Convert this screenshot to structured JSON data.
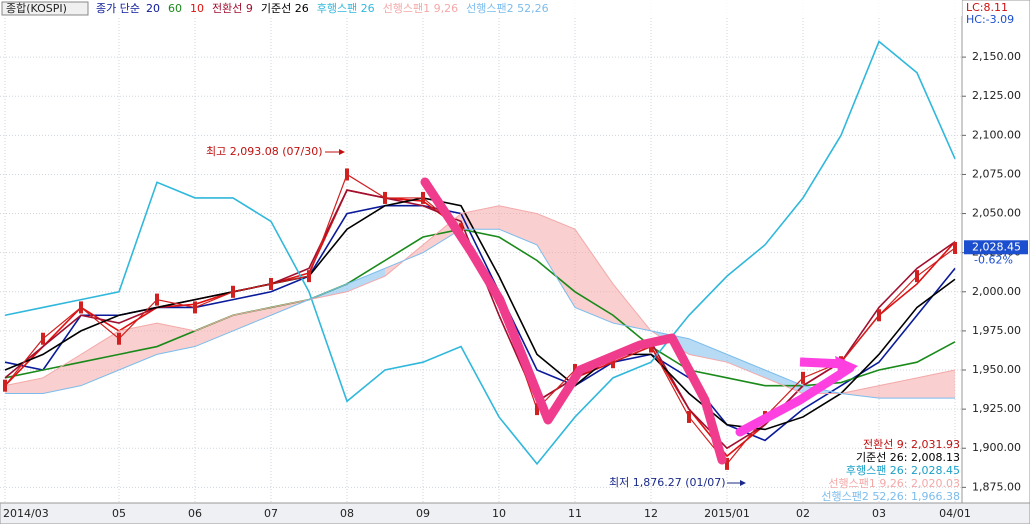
{
  "chart_data": {
    "type": "line",
    "header": "종합(KOSPI)",
    "ma_label": "종가 단순",
    "categories": [
      "2014/03",
      null,
      null,
      "05",
      null,
      "06",
      null,
      "07",
      null,
      "08",
      null,
      "09",
      null,
      "10",
      null,
      "11",
      null,
      "12",
      null,
      "2015/01",
      null,
      "02",
      null,
      "03",
      null,
      "04/01"
    ],
    "close_values": [
      1940,
      1970,
      1990,
      1970,
      1995,
      1990,
      2000,
      2005,
      2010,
      2075,
      2060,
      2060,
      2040,
      1995,
      1925,
      1950,
      1955,
      1965,
      1920,
      1890,
      1920,
      1945,
      1955,
      1985,
      2010,
      2028
    ],
    "close_color": "#d02020",
    "series": [
      {
        "name": "20",
        "color": "#0a1a9a",
        "values": [
          1955,
          1950,
          1985,
          1985,
          1990,
          1990,
          1995,
          2000,
          2010,
          2050,
          2055,
          2055,
          2050,
          2000,
          1950,
          1940,
          1955,
          1960,
          1945,
          1915,
          1905,
          1925,
          1940,
          1955,
          1985,
          2015
        ]
      },
      {
        "name": "60",
        "color": "#1a8a1a",
        "values": [
          1945,
          1950,
          1955,
          1960,
          1965,
          1975,
          1985,
          1990,
          1995,
          2005,
          2020,
          2035,
          2040,
          2035,
          2020,
          2000,
          1985,
          1965,
          1950,
          1945,
          1940,
          1940,
          1942,
          1950,
          1955,
          1968
        ]
      },
      {
        "name": "10",
        "color": "#e01010",
        "values": [
          1940,
          1965,
          1990,
          1975,
          1990,
          1992,
          2000,
          2005,
          2012,
          2065,
          2060,
          2058,
          2040,
          1990,
          1930,
          1945,
          1955,
          1965,
          1925,
          1895,
          1915,
          1940,
          1955,
          1985,
          2005,
          2032
        ]
      },
      {
        "name": "전환선 9",
        "color": "#a01030",
        "values": [
          1945,
          1965,
          1985,
          1980,
          1990,
          1995,
          2000,
          2005,
          2015,
          2065,
          2060,
          2055,
          2045,
          1985,
          1930,
          1945,
          1958,
          1968,
          1925,
          1900,
          1915,
          1940,
          1955,
          1990,
          2015,
          2032
        ]
      },
      {
        "name": "기준선 26",
        "color": "#000000",
        "values": [
          1950,
          1960,
          1975,
          1985,
          1990,
          1995,
          2000,
          2005,
          2010,
          2040,
          2055,
          2060,
          2055,
          2010,
          1960,
          1940,
          1960,
          1960,
          1935,
          1915,
          1912,
          1920,
          1935,
          1960,
          1990,
          2008
        ]
      },
      {
        "name": "후행스팬 26",
        "color": "#30b8dc",
        "values": [
          1985,
          1990,
          1995,
          2000,
          2070,
          2060,
          2060,
          2045,
          2000,
          1930,
          1950,
          1955,
          1965,
          1920,
          1890,
          1920,
          1945,
          1955,
          1985,
          2010,
          2030,
          2060,
          2100,
          2160,
          2140,
          2085
        ]
      },
      {
        "name": "선행스팬1 9,26",
        "color": "#f4a8a8",
        "values": [
          1940,
          1945,
          1960,
          1975,
          1980,
          1975,
          1985,
          1990,
          1995,
          2000,
          2010,
          2030,
          2050,
          2055,
          2050,
          2040,
          2005,
          1975,
          1960,
          1955,
          1945,
          1935,
          1935,
          1940,
          1945,
          1950
        ]
      },
      {
        "name": "선행스팬2 52,26",
        "color": "#7cbcec",
        "values": [
          1935,
          1935,
          1940,
          1950,
          1960,
          1965,
          1975,
          1985,
          1995,
          2005,
          2015,
          2025,
          2040,
          2040,
          2030,
          1990,
          1980,
          1975,
          1970,
          1960,
          1950,
          1940,
          1935,
          1932,
          1932,
          1932
        ]
      }
    ],
    "ylim": [
      1865,
      2186.5
    ],
    "yticks": [
      {
        "value": 1875,
        "label": "1,875.00"
      },
      {
        "value": 1900,
        "label": "1,900.00"
      },
      {
        "value": 1925,
        "label": "1,925.00"
      },
      {
        "value": 1950,
        "label": "1,950.00"
      },
      {
        "value": 1975,
        "label": "1,975.00"
      },
      {
        "value": 2000,
        "label": "2,000.00"
      },
      {
        "value": 2025,
        "label": "2,025.00"
      },
      {
        "value": 2050,
        "label": "2,050.00"
      },
      {
        "value": 2075,
        "label": "2,075.00"
      },
      {
        "value": 2100,
        "label": "2,100.00"
      },
      {
        "value": 2125,
        "label": "2,125.00"
      },
      {
        "value": 2150,
        "label": "2,150.00"
      }
    ],
    "grid": true,
    "annotations": [
      {
        "text": "최고 2,093.08 (07/30)",
        "color": "#c01010"
      },
      {
        "text": "최저 1,876.27 (01/07)",
        "color": "#1a2a8a"
      }
    ],
    "last_price": {
      "value": 2028.45,
      "label": "2,028.45"
    },
    "change": "-0.62%",
    "lc": "LC:8.11",
    "hc": "HC:-3.09",
    "info_labels": [
      {
        "text": "전환선 9: 2,031.93",
        "color": "#c01010"
      },
      {
        "text": "기준선 26: 2,008.13",
        "color": "#000000"
      },
      {
        "text": "후행스팬 26: 2,028.45",
        "color": "#1aa0c8"
      },
      {
        "text": "선행스팬1 9,26: 2,020.03",
        "color": "#f4a8a8"
      },
      {
        "text": "선행스팬2 52,26: 1,966.38",
        "color": "#7cbcec"
      }
    ]
  }
}
